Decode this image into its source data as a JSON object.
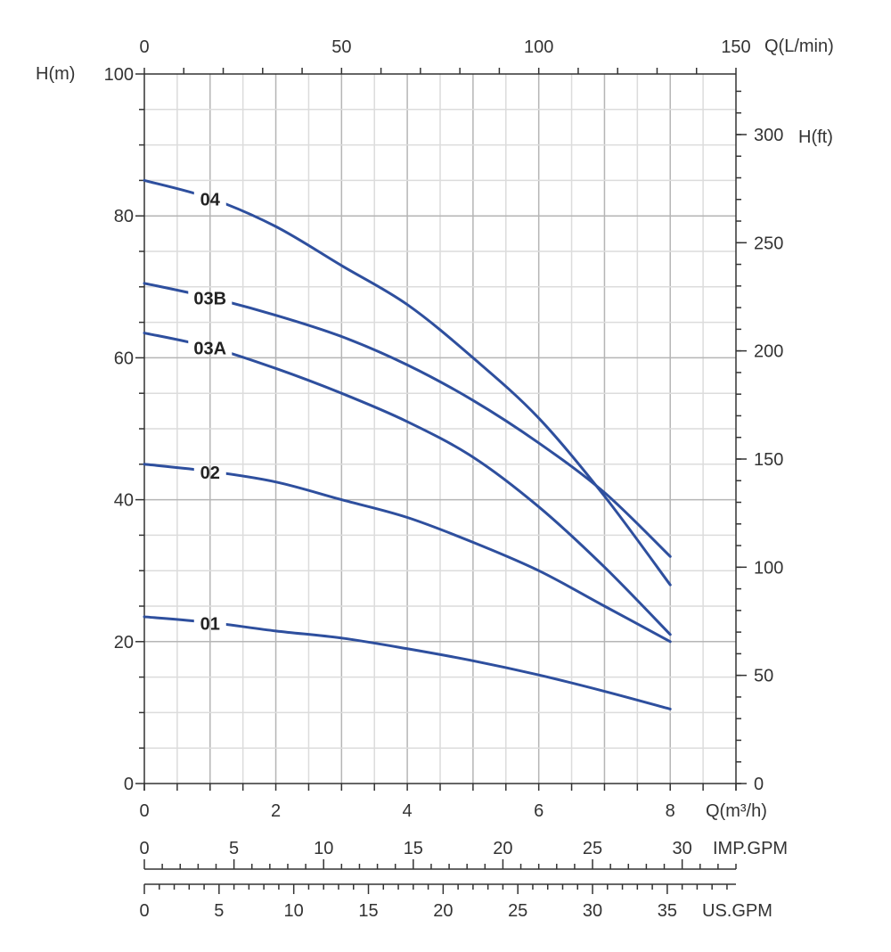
{
  "chart_data": {
    "type": "line",
    "title": "",
    "x": [
      0,
      1,
      2,
      3,
      4,
      5,
      6,
      7,
      8
    ],
    "xlim": [
      0,
      9
    ],
    "ylim": [
      0,
      100
    ],
    "xlabel": "Q(m³/h)",
    "ylabel": "H(m)",
    "x_ticks": [
      0,
      2,
      4,
      6,
      8
    ],
    "y_ticks": [
      0,
      20,
      40,
      60,
      80,
      100
    ],
    "grid": true,
    "series": [
      {
        "name": "04",
        "values": [
          85,
          82.5,
          78.5,
          73,
          67.5,
          60,
          51.5,
          40.5,
          28
        ]
      },
      {
        "name": "03B",
        "values": [
          70.5,
          68.5,
          66,
          63,
          59,
          54,
          48,
          41,
          32
        ]
      },
      {
        "name": "03A",
        "values": [
          63.5,
          61.5,
          58.5,
          55,
          51,
          46,
          39,
          30.5,
          21
        ]
      },
      {
        "name": "02",
        "values": [
          45,
          44,
          42.5,
          40,
          37.5,
          34,
          30,
          25,
          20
        ]
      },
      {
        "name": "01",
        "values": [
          23.5,
          22.7,
          21.5,
          20.5,
          19,
          17.3,
          15.3,
          13,
          10.5
        ]
      }
    ],
    "secondary_axes": {
      "top": {
        "label": "Q(L/min)",
        "ticks": [
          "0",
          "50",
          "100",
          "150"
        ],
        "lim": [
          0,
          150
        ]
      },
      "right": {
        "label": "H(ft)",
        "ticks": [
          "0",
          "50",
          "100",
          "150",
          "200",
          "250",
          "300"
        ],
        "lim": [
          0,
          328
        ]
      },
      "imp_gpm": {
        "label": "IMP.GPM",
        "ticks": [
          "0",
          "5",
          "10",
          "15",
          "20",
          "25",
          "30"
        ],
        "lim": [
          0,
          33
        ]
      },
      "us_gpm": {
        "label": "US.GPM",
        "ticks": [
          "0",
          "5",
          "10",
          "15",
          "20",
          "25",
          "30",
          "35"
        ],
        "lim": [
          0,
          39.6
        ]
      }
    },
    "colors": {
      "line": "#2e4f9e",
      "grid_major": "#b5b5b5",
      "grid_minor": "#dcdcdc",
      "axis": "#333333"
    }
  }
}
